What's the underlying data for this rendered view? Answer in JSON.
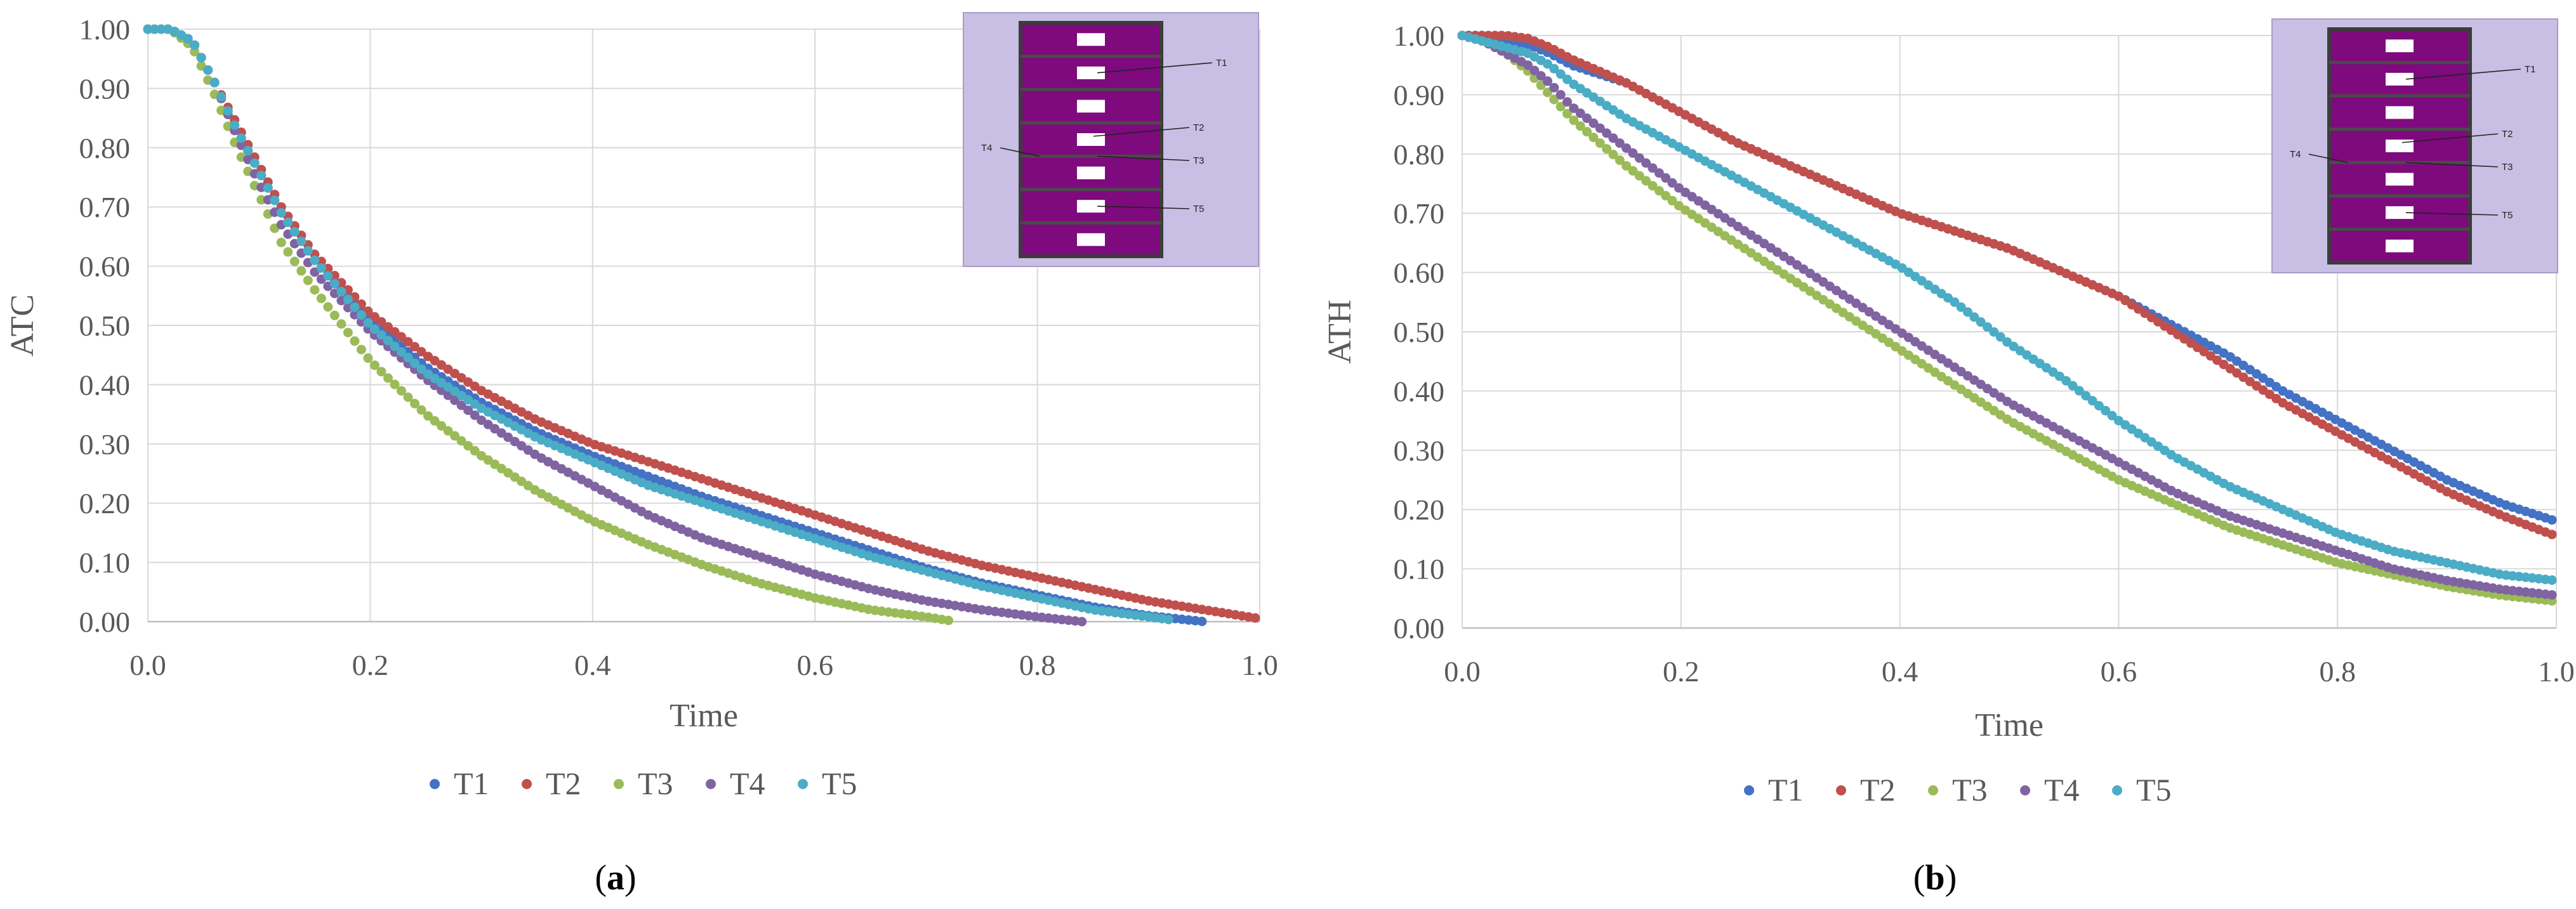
{
  "figure": {
    "panels": [
      {
        "label": "(a)",
        "letter": "a"
      },
      {
        "label": "(b)",
        "letter": "b"
      }
    ]
  },
  "chart_data": [
    {
      "type": "scatter",
      "title": "",
      "xlabel": "Time",
      "ylabel": "ATC",
      "xlim": [
        0.0,
        1.0
      ],
      "ylim": [
        0.0,
        1.0
      ],
      "xticks": [
        "0.0",
        "0.2",
        "0.4",
        "0.6",
        "0.8",
        "1.0"
      ],
      "yticks": [
        "0.00",
        "0.10",
        "0.20",
        "0.30",
        "0.40",
        "0.50",
        "0.60",
        "0.70",
        "0.80",
        "0.90",
        "1.00"
      ],
      "grid": true,
      "legend": "bottom",
      "inset": {
        "labels": [
          "T1",
          "T2",
          "T3",
          "T4",
          "T5"
        ]
      },
      "series": [
        {
          "name": "T1",
          "color": "#4472C4",
          "x": [
            0,
            0.02,
            0.04,
            0.06,
            0.08,
            0.1,
            0.12,
            0.15,
            0.2,
            0.25,
            0.3,
            0.35,
            0.4,
            0.45,
            0.5,
            0.55,
            0.6,
            0.65,
            0.7,
            0.75,
            0.8,
            0.85,
            0.9,
            0.95
          ],
          "y": [
            1.0,
            1.0,
            0.98,
            0.91,
            0.83,
            0.76,
            0.69,
            0.61,
            0.51,
            0.43,
            0.37,
            0.32,
            0.28,
            0.245,
            0.21,
            0.18,
            0.15,
            0.12,
            0.09,
            0.065,
            0.045,
            0.025,
            0.01,
            0.0
          ]
        },
        {
          "name": "T2",
          "color": "#C0504D",
          "x": [
            0,
            0.02,
            0.04,
            0.06,
            0.08,
            0.1,
            0.12,
            0.15,
            0.2,
            0.25,
            0.3,
            0.35,
            0.4,
            0.45,
            0.5,
            0.55,
            0.6,
            0.65,
            0.7,
            0.75,
            0.8,
            0.85,
            0.9,
            0.95,
            1.0
          ],
          "y": [
            1.0,
            1.0,
            0.98,
            0.91,
            0.84,
            0.77,
            0.7,
            0.62,
            0.52,
            0.45,
            0.39,
            0.34,
            0.3,
            0.27,
            0.24,
            0.21,
            0.18,
            0.15,
            0.12,
            0.095,
            0.075,
            0.055,
            0.035,
            0.02,
            0.005
          ]
        },
        {
          "name": "T3",
          "color": "#9BBB59",
          "x": [
            0,
            0.02,
            0.04,
            0.06,
            0.08,
            0.1,
            0.12,
            0.15,
            0.2,
            0.25,
            0.3,
            0.35,
            0.4,
            0.45,
            0.5,
            0.55,
            0.6,
            0.65,
            0.7,
            0.72
          ],
          "y": [
            1.0,
            1.0,
            0.97,
            0.89,
            0.8,
            0.72,
            0.64,
            0.56,
            0.44,
            0.35,
            0.28,
            0.22,
            0.17,
            0.13,
            0.095,
            0.065,
            0.04,
            0.02,
            0.008,
            0.002
          ]
        },
        {
          "name": "T4",
          "color": "#8064A2",
          "x": [
            0,
            0.02,
            0.04,
            0.06,
            0.08,
            0.1,
            0.12,
            0.15,
            0.2,
            0.25,
            0.3,
            0.35,
            0.4,
            0.45,
            0.5,
            0.55,
            0.6,
            0.65,
            0.7,
            0.75,
            0.8,
            0.84
          ],
          "y": [
            1.0,
            1.0,
            0.98,
            0.91,
            0.82,
            0.74,
            0.67,
            0.59,
            0.49,
            0.41,
            0.34,
            0.28,
            0.23,
            0.18,
            0.14,
            0.11,
            0.08,
            0.055,
            0.035,
            0.02,
            0.008,
            0.0
          ]
        },
        {
          "name": "T5",
          "color": "#4BACC6",
          "x": [
            0,
            0.02,
            0.04,
            0.06,
            0.08,
            0.1,
            0.12,
            0.15,
            0.2,
            0.25,
            0.3,
            0.35,
            0.4,
            0.45,
            0.5,
            0.55,
            0.6,
            0.65,
            0.7,
            0.75,
            0.8,
            0.85,
            0.9,
            0.92
          ],
          "y": [
            1.0,
            1.0,
            0.98,
            0.91,
            0.83,
            0.76,
            0.69,
            0.61,
            0.5,
            0.42,
            0.36,
            0.31,
            0.27,
            0.23,
            0.2,
            0.17,
            0.14,
            0.11,
            0.085,
            0.06,
            0.04,
            0.02,
            0.008,
            0.003
          ]
        }
      ]
    },
    {
      "type": "scatter",
      "title": "",
      "xlabel": "Time",
      "ylabel": "ATH",
      "xlim": [
        0.0,
        1.0
      ],
      "ylim": [
        0.0,
        1.0
      ],
      "xticks": [
        "0.0",
        "0.2",
        "0.4",
        "0.6",
        "0.8",
        "1.0"
      ],
      "yticks": [
        "0.00",
        "0.10",
        "0.20",
        "0.30",
        "0.40",
        "0.50",
        "0.60",
        "0.70",
        "0.80",
        "0.90",
        "1.00"
      ],
      "grid": true,
      "legend": "bottom",
      "inset": {
        "labels": [
          "T1",
          "T2",
          "T3",
          "T4",
          "T5"
        ]
      },
      "series": [
        {
          "name": "T1",
          "color": "#4472C4",
          "x": [
            0,
            0.02,
            0.04,
            0.06,
            0.08,
            0.1,
            0.15,
            0.2,
            0.25,
            0.3,
            0.35,
            0.4,
            0.45,
            0.5,
            0.55,
            0.6,
            0.65,
            0.7,
            0.75,
            0.8,
            0.85,
            0.9,
            0.95,
            1.0
          ],
          "y": [
            1.0,
            1.0,
            0.99,
            0.985,
            0.97,
            0.95,
            0.92,
            0.87,
            0.82,
            0.78,
            0.74,
            0.7,
            0.67,
            0.64,
            0.6,
            0.56,
            0.51,
            0.46,
            0.4,
            0.35,
            0.3,
            0.25,
            0.21,
            0.18
          ]
        },
        {
          "name": "T2",
          "color": "#C0504D",
          "x": [
            0,
            0.02,
            0.04,
            0.06,
            0.08,
            0.1,
            0.15,
            0.2,
            0.25,
            0.3,
            0.35,
            0.4,
            0.45,
            0.5,
            0.55,
            0.6,
            0.65,
            0.7,
            0.75,
            0.8,
            0.85,
            0.9,
            0.95,
            1.0
          ],
          "y": [
            1.0,
            1.0,
            1.0,
            0.995,
            0.98,
            0.96,
            0.92,
            0.87,
            0.82,
            0.78,
            0.74,
            0.7,
            0.67,
            0.64,
            0.6,
            0.56,
            0.5,
            0.44,
            0.38,
            0.33,
            0.28,
            0.23,
            0.19,
            0.155
          ]
        },
        {
          "name": "T3",
          "color": "#9BBB59",
          "x": [
            0,
            0.02,
            0.04,
            0.06,
            0.08,
            0.1,
            0.15,
            0.2,
            0.25,
            0.3,
            0.35,
            0.4,
            0.45,
            0.5,
            0.55,
            0.6,
            0.65,
            0.7,
            0.75,
            0.8,
            0.85,
            0.9,
            0.95,
            1.0
          ],
          "y": [
            1.0,
            0.99,
            0.97,
            0.94,
            0.9,
            0.86,
            0.78,
            0.71,
            0.65,
            0.59,
            0.53,
            0.47,
            0.41,
            0.35,
            0.3,
            0.25,
            0.21,
            0.17,
            0.14,
            0.11,
            0.09,
            0.07,
            0.055,
            0.045
          ]
        },
        {
          "name": "T4",
          "color": "#8064A2",
          "x": [
            0,
            0.02,
            0.04,
            0.06,
            0.08,
            0.1,
            0.15,
            0.2,
            0.25,
            0.3,
            0.35,
            0.4,
            0.45,
            0.5,
            0.55,
            0.6,
            0.65,
            0.7,
            0.75,
            0.8,
            0.85,
            0.9,
            0.95,
            1.0
          ],
          "y": [
            1.0,
            0.99,
            0.97,
            0.95,
            0.92,
            0.88,
            0.81,
            0.74,
            0.68,
            0.62,
            0.56,
            0.5,
            0.44,
            0.38,
            0.33,
            0.28,
            0.23,
            0.19,
            0.16,
            0.13,
            0.1,
            0.08,
            0.065,
            0.055
          ]
        },
        {
          "name": "T5",
          "color": "#4BACC6",
          "x": [
            0,
            0.02,
            0.04,
            0.06,
            0.08,
            0.1,
            0.15,
            0.2,
            0.25,
            0.3,
            0.35,
            0.4,
            0.45,
            0.5,
            0.55,
            0.6,
            0.65,
            0.7,
            0.75,
            0.8,
            0.85,
            0.9,
            0.95,
            1.0
          ],
          "y": [
            1.0,
            0.99,
            0.98,
            0.97,
            0.95,
            0.92,
            0.86,
            0.81,
            0.76,
            0.71,
            0.66,
            0.61,
            0.55,
            0.48,
            0.42,
            0.35,
            0.29,
            0.24,
            0.2,
            0.16,
            0.13,
            0.11,
            0.09,
            0.08
          ]
        }
      ]
    }
  ]
}
